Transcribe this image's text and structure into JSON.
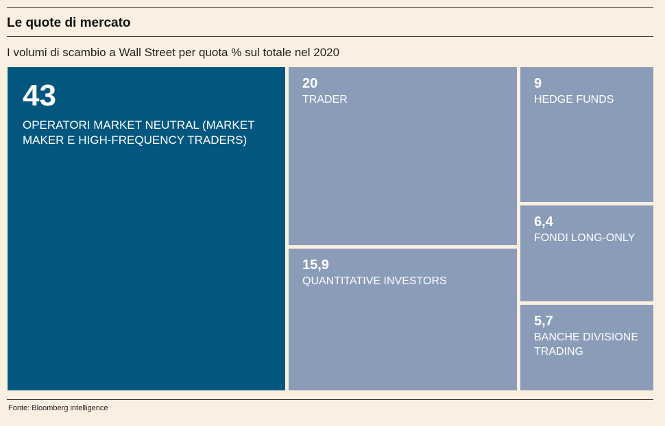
{
  "header": {
    "title": "Le quote di mercato",
    "subtitle": "I volumi di scambio a Wall Street per quota % sul totale nel 2020"
  },
  "footer": {
    "source": "Fonte: Bloomberg intelligence"
  },
  "colors": {
    "background": "#fbefe2",
    "primary_tile": "#03577f",
    "secondary_tile": "#8a9cb8"
  },
  "chart_data": {
    "type": "treemap",
    "title": "Le quote di mercato",
    "subtitle": "I volumi di scambio a Wall Street per quota % sul totale nel 2020",
    "unit": "%",
    "items": [
      {
        "value_label": "43",
        "value": 43,
        "label": "OPERATORI MARKET NEUTRAL (MARKET MAKER E HIGH-FREQUENCY TRADERS)",
        "color": "#03577f"
      },
      {
        "value_label": "20",
        "value": 20,
        "label": "TRADER",
        "color": "#8a9cb8"
      },
      {
        "value_label": "15,9",
        "value": 15.9,
        "label": "QUANTITATIVE INVESTORS",
        "color": "#8a9cb8"
      },
      {
        "value_label": "9",
        "value": 9,
        "label": "HEDGE FUNDS",
        "color": "#8a9cb8"
      },
      {
        "value_label": "6,4",
        "value": 6.4,
        "label": "FONDI LONG-ONLY",
        "color": "#8a9cb8"
      },
      {
        "value_label": "5,7",
        "value": 5.7,
        "label": "BANCHE DIVISIONE TRADING",
        "color": "#8a9cb8"
      }
    ]
  }
}
